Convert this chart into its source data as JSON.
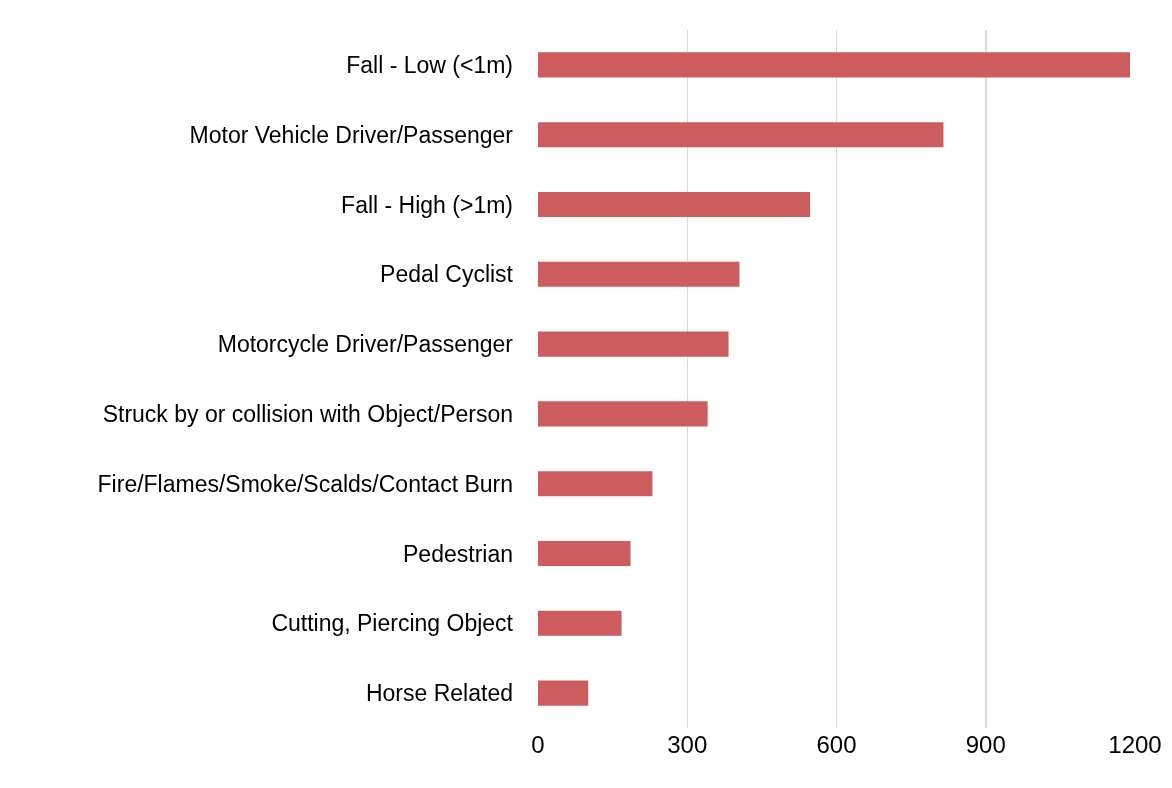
{
  "chart_data": {
    "type": "bar",
    "orientation": "horizontal",
    "categories": [
      "Fall - Low (<1m)",
      "Motor Vehicle Driver/Passenger",
      "Fall - High (>1m)",
      "Pedal Cyclist",
      "Motorcycle Driver/Passenger",
      "Struck by or collision with Object/Person",
      "Fire/Flames/Smoke/Scalds/Contact Burn",
      "Pedestrian",
      "Cutting, Piercing Object",
      "Horse Related"
    ],
    "values": [
      1190,
      815,
      547,
      405,
      383,
      341,
      230,
      186,
      168,
      101
    ],
    "color": "#cd5c5f",
    "xlim": [
      0,
      1200
    ],
    "xticks": [
      0,
      300,
      600,
      900,
      1200
    ],
    "grid": "x"
  }
}
